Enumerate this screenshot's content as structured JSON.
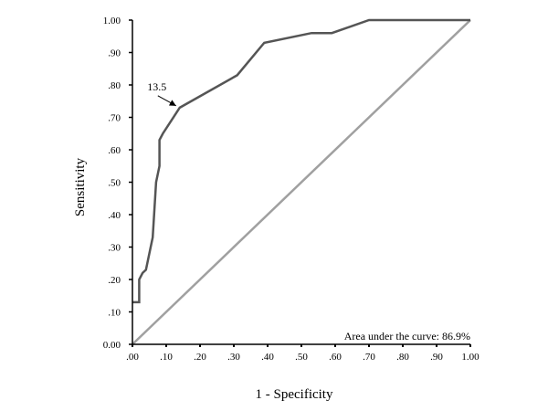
{
  "chart_data": {
    "type": "line",
    "title": "",
    "xlabel": "1 - Specificity",
    "ylabel": "Sensitivity",
    "xlim": [
      0,
      1
    ],
    "ylim": [
      0,
      1
    ],
    "x_ticks": [
      ".00",
      ".10",
      ".20",
      ".30",
      ".40",
      ".50",
      ".60",
      ".70",
      ".80",
      ".90",
      "1.00"
    ],
    "x_tick_values": [
      0,
      0.1,
      0.2,
      0.3,
      0.4,
      0.5,
      0.6,
      0.7,
      0.8,
      0.9,
      1.0
    ],
    "y_ticks": [
      "0.00",
      ".10",
      ".20",
      ".30",
      ".40",
      ".50",
      ".60",
      ".70",
      ".80",
      ".90",
      "1.00"
    ],
    "y_tick_values": [
      0,
      0.1,
      0.2,
      0.3,
      0.4,
      0.5,
      0.6,
      0.7,
      0.8,
      0.9,
      1.0
    ],
    "grid": false,
    "series": [
      {
        "color": "#555555",
        "x": [
          0.0,
          0.02,
          0.02,
          0.03,
          0.04,
          0.06,
          0.07,
          0.08,
          0.08,
          0.09,
          0.14,
          0.31,
          0.39,
          0.53,
          0.59,
          0.7,
          1.0
        ],
        "y": [
          0.13,
          0.13,
          0.2,
          0.22,
          0.23,
          0.33,
          0.5,
          0.55,
          0.63,
          0.65,
          0.73,
          0.83,
          0.93,
          0.96,
          0.96,
          1.0,
          1.0
        ]
      },
      {
        "color": "#a0a0a0",
        "x": [
          0.0,
          1.0
        ],
        "y": [
          0.0,
          1.0
        ]
      }
    ],
    "annotations": [
      {
        "text": "13.5",
        "x": 0.14,
        "y": 0.73,
        "arrow": true
      },
      {
        "text": "Area under the curve: 86.9%",
        "position": "bottom-right"
      }
    ]
  }
}
